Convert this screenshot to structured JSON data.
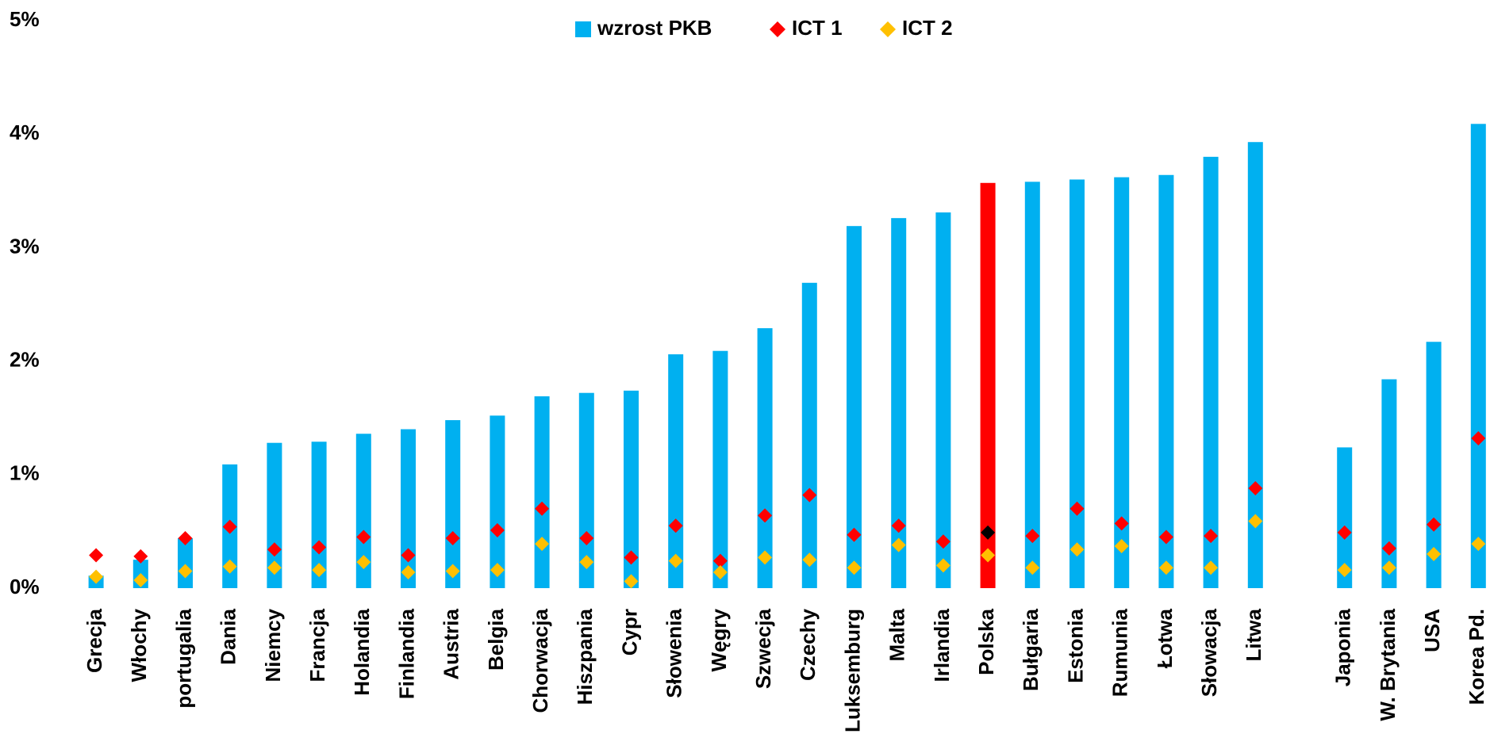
{
  "chart_data": {
    "type": "bar",
    "categories": [
      "Grecja",
      "Włochy",
      "portugalia",
      "Dania",
      "Niemcy",
      "Francja",
      "Holandia",
      "Finlandia",
      "Austria",
      "Belgia",
      "Chorwacja",
      "Hiszpania",
      "Cypr",
      "Słowenia",
      "Węgry",
      "Szwecja",
      "Czechy",
      "Luksemburg",
      "Malta",
      "Irlandia",
      "Polska",
      "Bułgaria",
      "Estonia",
      "Rumunia",
      "Łotwa",
      "Słowacja",
      "Litwa",
      null,
      "Japonia",
      "W. Brytania",
      "USA",
      "Korea Pd."
    ],
    "series": [
      {
        "name": "wzrost PKB",
        "type": "bar",
        "color": "#00b0f0",
        "colors": [
          "#00b0f0",
          "#00b0f0",
          "#00b0f0",
          "#00b0f0",
          "#00b0f0",
          "#00b0f0",
          "#00b0f0",
          "#00b0f0",
          "#00b0f0",
          "#00b0f0",
          "#00b0f0",
          "#00b0f0",
          "#00b0f0",
          "#00b0f0",
          "#00b0f0",
          "#00b0f0",
          "#00b0f0",
          "#00b0f0",
          "#00b0f0",
          "#00b0f0",
          "#ff0000",
          "#00b0f0",
          "#00b0f0",
          "#00b0f0",
          "#00b0f0",
          "#00b0f0",
          "#00b0f0",
          null,
          "#00b0f0",
          "#00b0f0",
          "#00b0f0",
          "#00b0f0"
        ],
        "values": [
          0.11,
          0.25,
          0.44,
          1.09,
          1.28,
          1.29,
          1.36,
          1.4,
          1.48,
          1.52,
          1.69,
          1.72,
          1.74,
          2.06,
          2.09,
          2.29,
          2.69,
          3.19,
          3.26,
          3.31,
          3.57,
          3.58,
          3.6,
          3.62,
          3.64,
          3.8,
          3.93,
          null,
          1.24,
          1.84,
          2.17,
          4.09
        ]
      },
      {
        "name": "ICT 1",
        "type": "diamond",
        "color": "#ff0000",
        "colors": [
          "#ff0000",
          "#ff0000",
          "#ff0000",
          "#ff0000",
          "#ff0000",
          "#ff0000",
          "#ff0000",
          "#ff0000",
          "#ff0000",
          "#ff0000",
          "#ff0000",
          "#ff0000",
          "#ff0000",
          "#ff0000",
          "#ff0000",
          "#ff0000",
          "#ff0000",
          "#ff0000",
          "#ff0000",
          "#ff0000",
          "#000000",
          "#ff0000",
          "#ff0000",
          "#ff0000",
          "#ff0000",
          "#ff0000",
          "#ff0000",
          null,
          "#ff0000",
          "#ff0000",
          "#ff0000",
          "#ff0000"
        ],
        "values": [
          0.29,
          0.28,
          0.44,
          0.54,
          0.34,
          0.36,
          0.45,
          0.29,
          0.44,
          0.51,
          0.7,
          0.44,
          0.27,
          0.55,
          0.24,
          0.64,
          0.82,
          0.47,
          0.55,
          0.41,
          0.49,
          0.46,
          0.7,
          0.57,
          0.45,
          0.46,
          0.88,
          null,
          0.49,
          0.35,
          0.56,
          1.32
        ]
      },
      {
        "name": "ICT 2",
        "type": "diamond",
        "color": "#ffc000",
        "values": [
          0.1,
          0.07,
          0.15,
          0.19,
          0.18,
          0.16,
          0.23,
          0.14,
          0.15,
          0.16,
          0.39,
          0.23,
          0.06,
          0.24,
          0.14,
          0.27,
          0.25,
          0.18,
          0.38,
          0.2,
          0.29,
          0.18,
          0.34,
          0.37,
          0.18,
          0.18,
          0.59,
          null,
          0.16,
          0.18,
          0.3,
          0.39
        ]
      }
    ],
    "ylim": [
      0,
      5
    ],
    "yticks": [
      {
        "value": 0,
        "label": "0%"
      },
      {
        "value": 1,
        "label": "1%"
      },
      {
        "value": 2,
        "label": "2%"
      },
      {
        "value": 3,
        "label": "3%"
      },
      {
        "value": 4,
        "label": "4%"
      },
      {
        "value": 5,
        "label": "5%"
      }
    ],
    "grid": false,
    "legend": "top"
  }
}
